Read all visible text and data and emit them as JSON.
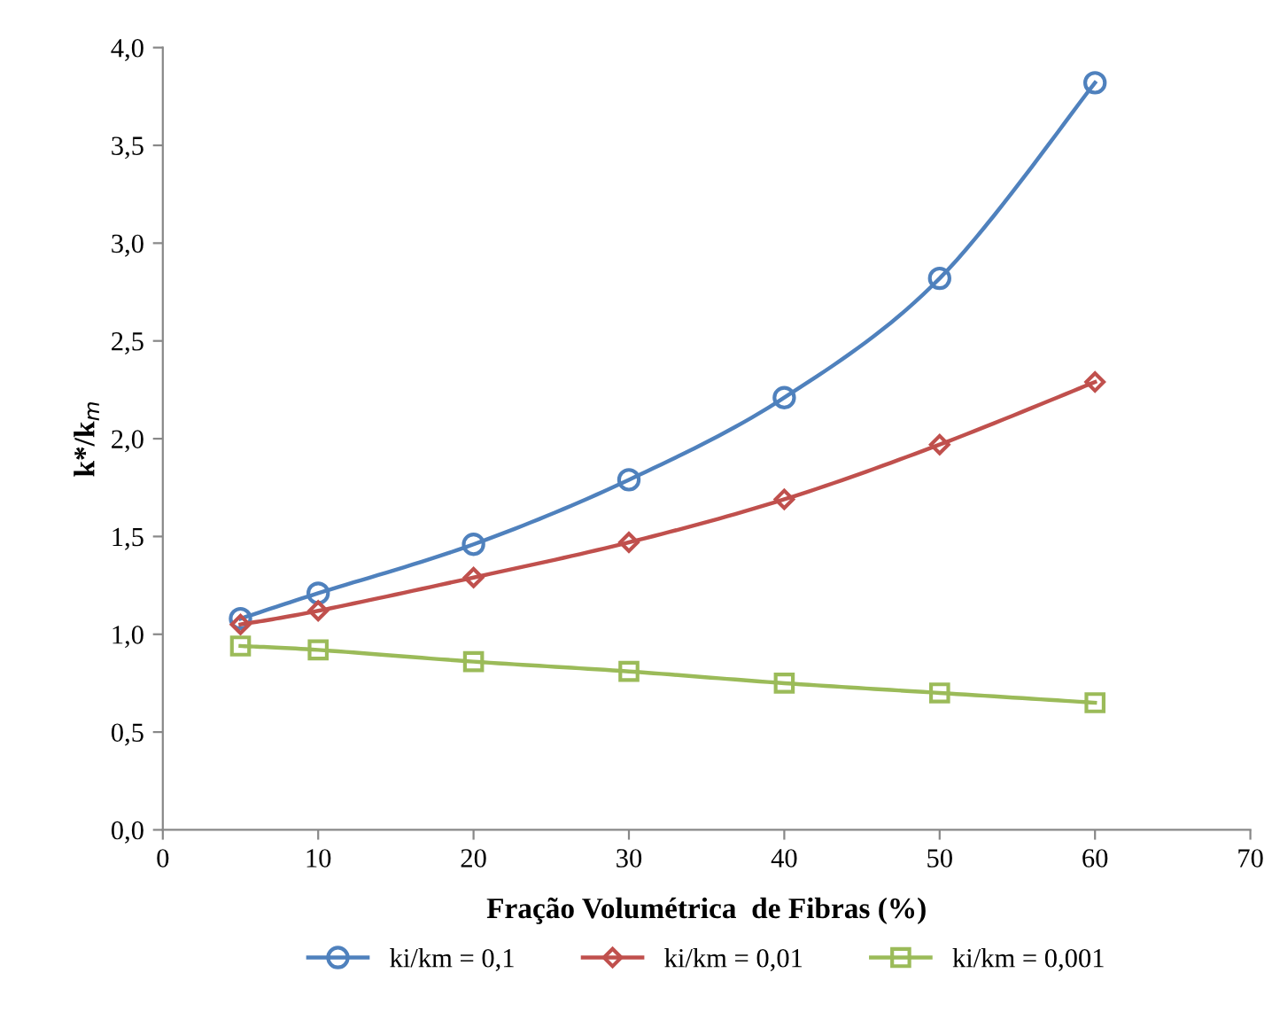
{
  "chart_data": {
    "type": "line",
    "xlabel": "Fração Volumétrica  de Fibras (%)",
    "ylabel": "k*/k$_{m}$",
    "x": [
      5,
      10,
      20,
      30,
      40,
      50,
      60
    ],
    "series": [
      {
        "name": "ki/km = 0,1",
        "color": "#4f81bd",
        "marker": "circle",
        "values": [
          1.08,
          1.21,
          1.46,
          1.79,
          2.21,
          2.82,
          3.82
        ]
      },
      {
        "name": "ki/km = 0,01",
        "color": "#c0504d",
        "marker": "diamond",
        "values": [
          1.05,
          1.12,
          1.29,
          1.47,
          1.69,
          1.97,
          2.29
        ]
      },
      {
        "name": "ki/km = 0,001",
        "color": "#9bbb59",
        "marker": "square",
        "values": [
          0.94,
          0.92,
          0.86,
          0.81,
          0.75,
          0.7,
          0.65
        ]
      }
    ],
    "xlim": [
      0,
      70
    ],
    "xticks": [
      0,
      10,
      20,
      30,
      40,
      50,
      60,
      70
    ],
    "ylim": [
      0,
      4
    ],
    "yticks": [
      {
        "value": 0,
        "label": "0,0"
      },
      {
        "value": 0.5,
        "label": "0,5"
      },
      {
        "value": 1,
        "label": "1,0"
      },
      {
        "value": 1.5,
        "label": "1,5"
      },
      {
        "value": 2,
        "label": "2,0"
      },
      {
        "value": 2.5,
        "label": "2,5"
      },
      {
        "value": 3,
        "label": "3,0"
      },
      {
        "value": 3.5,
        "label": "3,5"
      },
      {
        "value": 4,
        "label": "4,0"
      }
    ],
    "grid": false,
    "legend": "bottom",
    "line_style": "solid"
  }
}
